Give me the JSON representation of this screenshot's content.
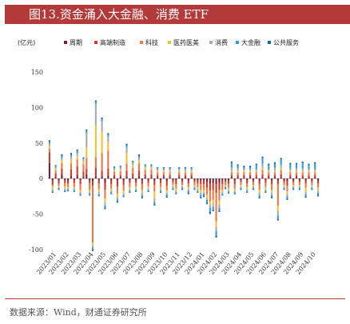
{
  "header": {
    "title": "图13.资金涌入大金融、消费 ETF"
  },
  "source": "数据来源：Wind，财通证券研究所",
  "chart_data": {
    "type": "bar",
    "stacked": true,
    "unit_label": "(亿元)",
    "ylim": [
      -100,
      150
    ],
    "yticks": [
      -100,
      -50,
      0,
      50,
      100,
      150
    ],
    "grid": false,
    "legend_position": "top",
    "x_tick_labels": [
      "2023/01",
      "2023/02",
      "2023/03",
      "2023/04",
      "2023/05",
      "2023/06",
      "2023/07",
      "2023/08",
      "2023/09",
      "2023/10",
      "2023/11",
      "2023/12",
      "2024/01",
      "2024/02",
      "2024/03",
      "2024/04",
      "2024/05",
      "2024/06",
      "2024/07",
      "2024/08",
      "2024/09",
      "2024/10"
    ],
    "bar_count": 88,
    "series": [
      {
        "name": "周期",
        "color": "#7b1f2e",
        "values": [
          22,
          -3,
          2,
          -2,
          6,
          -2,
          -3,
          3,
          -2,
          5,
          -2,
          2,
          6,
          -2,
          -4,
          3,
          -2,
          3,
          -6,
          4,
          -3,
          2,
          -3,
          2,
          -3,
          3,
          -2,
          2,
          -2,
          3,
          -3,
          2,
          -2,
          2,
          -3,
          2,
          -2,
          2,
          -4,
          2,
          -2,
          -3,
          2,
          -2,
          2,
          -3,
          2,
          -2,
          -3,
          -3,
          -3,
          -5,
          -7,
          -6,
          -8,
          -6,
          -3,
          -2,
          -3,
          2,
          -3,
          2,
          -2,
          2,
          -3,
          2,
          -2,
          2,
          -3,
          2,
          -2,
          2,
          -3,
          2,
          -3,
          2,
          -2,
          -4,
          2,
          -2,
          2,
          -2,
          2,
          -3,
          2,
          -2,
          2,
          -3
        ]
      },
      {
        "name": "高端制造",
        "color": "#cf3a2a",
        "values": [
          15,
          -6,
          5,
          -5,
          8,
          -4,
          -4,
          10,
          -4,
          12,
          -6,
          8,
          8,
          -4,
          -6,
          12,
          -5,
          8,
          -10,
          10,
          -5,
          3,
          -8,
          3,
          -6,
          8,
          -4,
          5,
          -4,
          8,
          -5,
          4,
          -4,
          4,
          -6,
          3,
          -4,
          3,
          -6,
          3,
          -3,
          -5,
          3,
          -3,
          3,
          -4,
          3,
          -3,
          -4,
          -5,
          -5,
          -8,
          -10,
          -10,
          -12,
          -10,
          -5,
          -3,
          -4,
          3,
          -5,
          3,
          -3,
          3,
          -4,
          3,
          -3,
          3,
          -5,
          4,
          -4,
          3,
          -5,
          3,
          -5,
          4,
          -3,
          -6,
          3,
          -3,
          3,
          -3,
          3,
          -4,
          3,
          -3,
          3,
          -4
        ]
      },
      {
        "name": "科技",
        "color": "#e9794a",
        "values": [
          5,
          -2,
          4,
          -3,
          8,
          -5,
          -5,
          8,
          -6,
          10,
          -8,
          10,
          15,
          -10,
          -80,
          15,
          -8,
          25,
          -12,
          25,
          -6,
          5,
          -10,
          5,
          -8,
          10,
          -6,
          8,
          -5,
          10,
          -8,
          6,
          -5,
          6,
          -9,
          4,
          -6,
          4,
          -7,
          4,
          -4,
          -6,
          4,
          -4,
          4,
          -5,
          4,
          -4,
          -5,
          -8,
          -8,
          -10,
          -15,
          -14,
          -40,
          -15,
          -8,
          -4,
          -6,
          4,
          -6,
          4,
          -4,
          4,
          -5,
          4,
          -4,
          4,
          -8,
          6,
          -6,
          4,
          -8,
          4,
          -30,
          6,
          -4,
          -8,
          4,
          -4,
          4,
          -4,
          4,
          -6,
          4,
          -4,
          4,
          -6
        ]
      },
      {
        "name": "医药医美",
        "color": "#f2c13a",
        "values": [
          4,
          -4,
          3,
          -2,
          4,
          -3,
          -2,
          6,
          -2,
          5,
          -3,
          4,
          15,
          -3,
          -4,
          45,
          -4,
          30,
          -6,
          12,
          -3,
          2,
          -5,
          3,
          -4,
          15,
          -3,
          4,
          -3,
          5,
          -4,
          3,
          -3,
          3,
          -10,
          2,
          -3,
          2,
          -3,
          2,
          -2,
          -3,
          2,
          -2,
          2,
          -3,
          2,
          -2,
          -3,
          -4,
          -3,
          -4,
          -5,
          -6,
          -8,
          -6,
          -3,
          -2,
          -3,
          2,
          -3,
          2,
          -2,
          2,
          -3,
          2,
          -2,
          2,
          -4,
          3,
          -3,
          2,
          -4,
          2,
          -8,
          3,
          -2,
          -4,
          2,
          -2,
          2,
          -2,
          2,
          -6,
          2,
          -2,
          2,
          -4
        ]
      },
      {
        "name": "消费",
        "color": "#a9a9b3",
        "values": [
          3,
          -2,
          2,
          -1,
          3,
          -2,
          -1,
          4,
          -2,
          4,
          -2,
          3,
          20,
          -2,
          -3,
          30,
          -3,
          15,
          -4,
          8,
          -2,
          2,
          -3,
          2,
          -2,
          8,
          -2,
          3,
          -2,
          3,
          -3,
          2,
          -2,
          2,
          -5,
          2,
          -2,
          2,
          -2,
          2,
          -2,
          -2,
          2,
          -2,
          2,
          -2,
          2,
          -2,
          -2,
          -3,
          -2,
          -3,
          -4,
          -4,
          -6,
          -4,
          -2,
          -1,
          -2,
          5,
          -2,
          3,
          -2,
          2,
          -2,
          2,
          -2,
          2,
          -3,
          6,
          -2,
          2,
          -3,
          4,
          -6,
          4,
          -2,
          -3,
          3,
          -2,
          3,
          -2,
          3,
          -3,
          2,
          -2,
          2,
          -3
        ]
      },
      {
        "name": "大金融",
        "color": "#2e9fde",
        "values": [
          3,
          -2,
          2,
          -2,
          3,
          -2,
          -2,
          3,
          -2,
          3,
          -2,
          2,
          3,
          -2,
          -3,
          3,
          -2,
          3,
          -3,
          3,
          -2,
          2,
          -3,
          2,
          -2,
          3,
          -2,
          2,
          -2,
          3,
          -3,
          2,
          -2,
          2,
          -3,
          2,
          -2,
          2,
          -3,
          2,
          -2,
          -2,
          2,
          -2,
          2,
          -3,
          2,
          -2,
          -2,
          -3,
          -3,
          -4,
          -6,
          -4,
          -6,
          -4,
          -2,
          -2,
          -2,
          6,
          -2,
          4,
          -2,
          3,
          -2,
          3,
          -2,
          6,
          -3,
          8,
          -2,
          6,
          -3,
          6,
          -5,
          8,
          -2,
          -3,
          6,
          -2,
          6,
          -2,
          8,
          -3,
          6,
          -2,
          8,
          -3
        ]
      },
      {
        "name": "公共服务",
        "color": "#1f5fa8",
        "values": [
          2,
          -1,
          1,
          -1,
          2,
          -1,
          -1,
          2,
          -1,
          2,
          -1,
          1,
          2,
          -1,
          -2,
          2,
          -1,
          2,
          -2,
          2,
          -1,
          1,
          -2,
          1,
          -1,
          2,
          -1,
          1,
          -1,
          2,
          -2,
          1,
          -1,
          1,
          -2,
          1,
          -1,
          1,
          -2,
          1,
          -1,
          -1,
          1,
          -1,
          1,
          -2,
          1,
          -1,
          -1,
          -2,
          -2,
          -2,
          -3,
          -2,
          -3,
          -2,
          -1,
          -1,
          -1,
          2,
          -1,
          2,
          -1,
          2,
          -1,
          2,
          -1,
          2,
          -2,
          2,
          -1,
          2,
          -2,
          2,
          -2,
          2,
          -1,
          -2,
          2,
          -1,
          2,
          -1,
          2,
          -2,
          2,
          -1,
          2,
          -2
        ]
      }
    ]
  }
}
